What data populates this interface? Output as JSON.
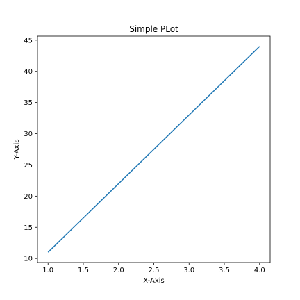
{
  "chart_data": {
    "type": "line",
    "title": "Simple PLot",
    "xlabel": "X-Axis",
    "ylabel": "Y-Axis",
    "xlim": [
      0.85,
      4.15
    ],
    "ylim": [
      9.35,
      45.65
    ],
    "x_ticks": [
      1.0,
      1.5,
      2.0,
      2.5,
      3.0,
      3.5,
      4.0
    ],
    "x_tick_labels": [
      "1.0",
      "1.5",
      "2.0",
      "2.5",
      "3.0",
      "3.5",
      "4.0"
    ],
    "y_ticks": [
      10,
      15,
      20,
      25,
      30,
      35,
      40,
      45
    ],
    "y_tick_labels": [
      "10",
      "15",
      "20",
      "25",
      "30",
      "35",
      "40",
      "45"
    ],
    "grid": false,
    "series": [
      {
        "x": [
          1,
          4
        ],
        "y": [
          11,
          44
        ],
        "color": "#1f77b4"
      }
    ]
  }
}
